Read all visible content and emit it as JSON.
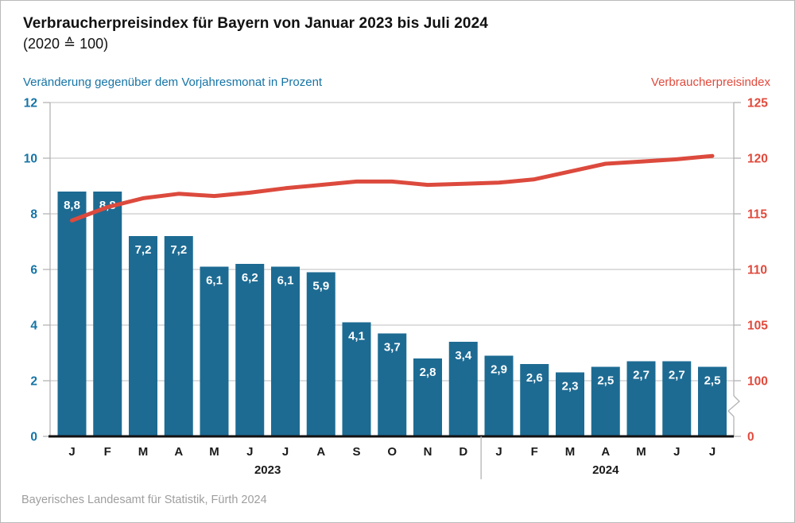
{
  "title": "Verbraucherpreisindex für Bayern von Januar 2023 bis Juli 2024",
  "subtitle": "(2020 ≙ 100)",
  "left_axis_header": "Veränderung gegenüber dem Vorjahresmonat in Prozent",
  "right_axis_header": "Verbraucherpreisindex",
  "footer": "Bayerisches Landesamt für Statistik, Fürth 2024",
  "colors": {
    "bar": "#1d6b93",
    "line": "#dc4a3d",
    "left_text": "#1574a6",
    "right_text": "#e04a3c",
    "grid": "#c9c9c9",
    "spine": "#b3b3b3",
    "axis_bottom": "#111111",
    "month_text": "#1a1a1a",
    "footer_text": "#9e9e9e"
  },
  "chart_data": {
    "type": "bar+line",
    "categories": [
      "J",
      "F",
      "M",
      "A",
      "M",
      "J",
      "J",
      "A",
      "S",
      "O",
      "N",
      "D",
      "J",
      "F",
      "M",
      "A",
      "M",
      "J",
      "J"
    ],
    "year_groups": [
      {
        "label": "2023",
        "start": 0,
        "end": 11
      },
      {
        "label": "2024",
        "start": 12,
        "end": 18
      }
    ],
    "series": [
      {
        "name": "Veränderung gegenüber dem Vorjahresmonat in Prozent",
        "type": "bar",
        "axis": "left",
        "values": [
          8.8,
          8.8,
          7.2,
          7.2,
          6.1,
          6.2,
          6.1,
          5.9,
          4.1,
          3.7,
          2.8,
          3.4,
          2.9,
          2.6,
          2.3,
          2.5,
          2.7,
          2.7,
          2.5
        ],
        "display_labels": [
          "8,8",
          "8,8",
          "7,2",
          "7,2",
          "6,1",
          "6,2",
          "6,1",
          "5,9",
          "4,1",
          "3,7",
          "2,8",
          "3,4",
          "2,9",
          "2,6",
          "2,3",
          "2,5",
          "2,7",
          "2,7",
          "2,5"
        ]
      },
      {
        "name": "Verbraucherpreisindex",
        "type": "line",
        "axis": "right",
        "values": [
          114.4,
          115.6,
          116.4,
          116.8,
          116.6,
          116.9,
          117.3,
          117.6,
          117.9,
          117.9,
          117.6,
          117.7,
          117.8,
          118.1,
          118.8,
          119.5,
          119.7,
          119.9,
          120.2
        ]
      }
    ],
    "left_axis": {
      "range": [
        0,
        12
      ],
      "ticks": [
        0,
        2,
        4,
        6,
        8,
        10,
        12
      ],
      "tick_labels": [
        "0",
        "2",
        "4",
        "6",
        "8",
        "10",
        "12"
      ]
    },
    "right_axis": {
      "upper_range": [
        100,
        125
      ],
      "upper_ticks": [
        100,
        105,
        110,
        115,
        120,
        125
      ],
      "upper_tick_labels": [
        "100",
        "105",
        "110",
        "115",
        "120",
        "125"
      ],
      "zero_label": "0",
      "has_break": true
    },
    "grid": true,
    "legend_position": "none"
  }
}
